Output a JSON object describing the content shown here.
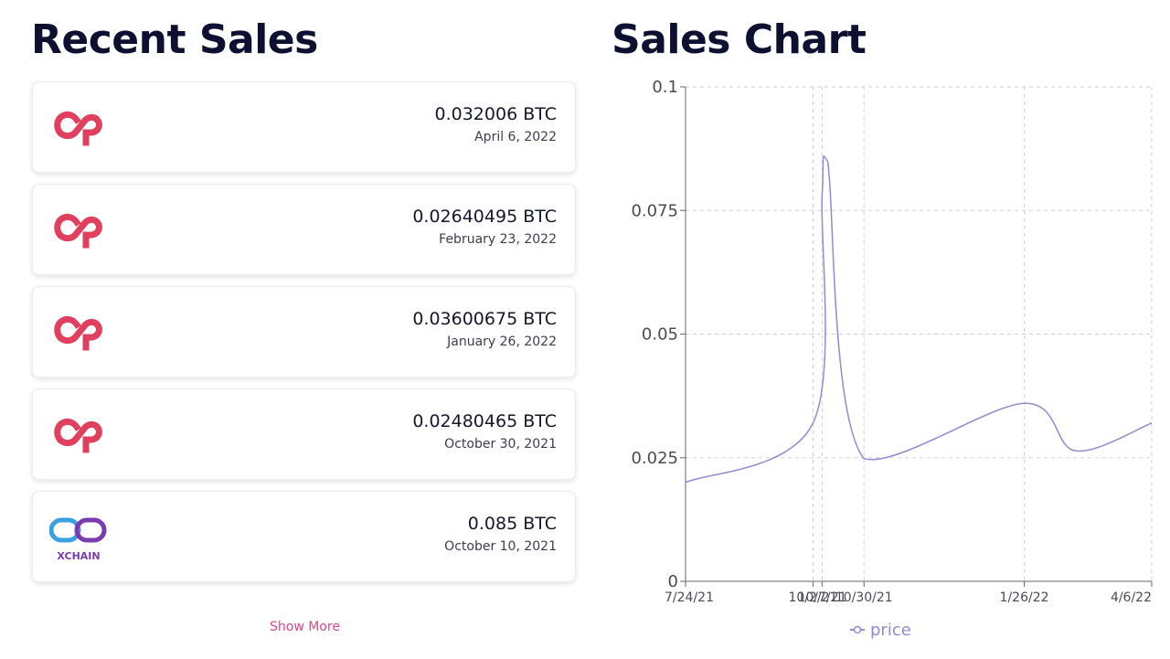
{
  "recent_sales": {
    "title": "Recent Sales",
    "items": [
      {
        "amount": "0.032006 BTC",
        "date": "April 6, 2022",
        "logo": "counterparty-logo-icon"
      },
      {
        "amount": "0.02640495 BTC",
        "date": "February 23, 2022",
        "logo": "counterparty-logo-icon"
      },
      {
        "amount": "0.03600675 BTC",
        "date": "January 26, 2022",
        "logo": "counterparty-logo-icon"
      },
      {
        "amount": "0.02480465 BTC",
        "date": "October 30, 2021",
        "logo": "counterparty-logo-icon"
      },
      {
        "amount": "0.085 BTC",
        "date": "October 10, 2021",
        "logo": "xchain-logo-icon",
        "logo_text": "XCHAIN"
      }
    ],
    "show_more_label": "Show More"
  },
  "sales_chart": {
    "title": "Sales Chart",
    "legend_label": "price"
  },
  "colors": {
    "counterparty_red": "#e0405e",
    "xchain_blue": "#3aa0e0",
    "xchain_purple": "#7a3bb0",
    "line": "#8f8ccf",
    "grid": "#cfcfd6",
    "accent_pink": "#d9468f"
  },
  "chart_data": {
    "type": "line",
    "title": "",
    "xlabel": "",
    "ylabel": "",
    "ylim": [
      0,
      0.1
    ],
    "yticks": [
      0,
      0.025,
      0.05,
      0.075,
      0.1
    ],
    "ytick_labels": [
      "0",
      "0.025",
      "0.05",
      "0.075",
      "0.1"
    ],
    "grid": true,
    "legend": "bottom-center",
    "x_tick_labels": [
      "7/24/21",
      "10/2/21",
      "10/7/21",
      "10/30/21",
      "1/26/22",
      "4/6/22"
    ],
    "x_tick_dates": [
      "2021-07-24",
      "2021-10-02",
      "2021-10-07",
      "2021-10-30",
      "2022-01-26",
      "2022-04-06"
    ],
    "series": [
      {
        "name": "price",
        "points": [
          {
            "x": "2021-07-24",
            "y": 0.02
          },
          {
            "x": "2021-10-02",
            "y": 0.032
          },
          {
            "x": "2021-10-07",
            "y": 0.078
          },
          {
            "x": "2021-10-10",
            "y": 0.085
          },
          {
            "x": "2021-10-30",
            "y": 0.0248
          },
          {
            "x": "2022-01-26",
            "y": 0.036
          },
          {
            "x": "2022-02-23",
            "y": 0.0264
          },
          {
            "x": "2022-04-06",
            "y": 0.032
          }
        ]
      }
    ]
  }
}
